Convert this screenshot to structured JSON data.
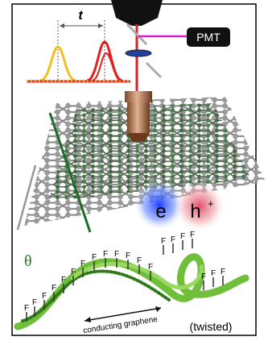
{
  "labels": {
    "pulse_delay": "t",
    "detector": "PMT",
    "electron": "e",
    "hole": "h",
    "hole_charge": "+",
    "twist_angle": "θ",
    "fluorine": "F",
    "ribbon": "conducting graphene",
    "ribbon_state": "(twisted)"
  }
}
